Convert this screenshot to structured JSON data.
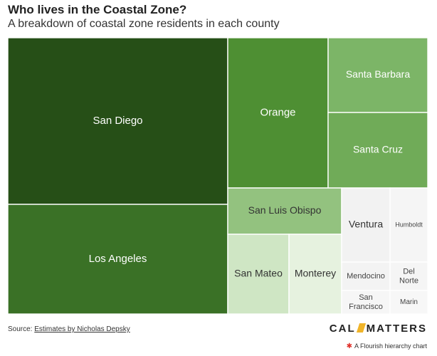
{
  "header": {
    "title": "Who lives in the Coastal Zone?",
    "subtitle": "A breakdown of coastal zone residents in each county"
  },
  "footer": {
    "source_prefix": "Source: ",
    "source_link": "Estimates by Nicholas Depsky",
    "logo_left": "CAL",
    "logo_right": "MATTERS",
    "flourish_label": "A Flourish hierarchy chart",
    "flourish_icon": "flourish-logo-icon"
  },
  "chart_data": {
    "type": "treemap",
    "title": "Who lives in the Coastal Zone?",
    "subtitle": "A breakdown of coastal zone residents in each county",
    "value_note": "relative share estimated from tile area",
    "items": [
      {
        "name": "San Diego",
        "value": 100
      },
      {
        "name": "Los Angeles",
        "value": 64
      },
      {
        "name": "Orange",
        "value": 44
      },
      {
        "name": "Santa Barbara",
        "value": 15
      },
      {
        "name": "Santa Cruz",
        "value": 15
      },
      {
        "name": "San Luis Obispo",
        "value": 11.5
      },
      {
        "name": "San Mateo",
        "value": 11.5
      },
      {
        "name": "Monterey",
        "value": 10
      },
      {
        "name": "Ventura",
        "value": 7
      },
      {
        "name": "Humboldt",
        "value": 6
      },
      {
        "name": "Mendocino",
        "value": 4.5
      },
      {
        "name": "Del Norte",
        "value": 3
      },
      {
        "name": "San Francisco",
        "value": 3
      },
      {
        "name": "Marin",
        "value": 2
      }
    ],
    "colors": {
      "San Diego": "#264f17",
      "Los Angeles": "#3a7126",
      "Orange": "#4e8f33",
      "Santa Barbara": "#7cb567",
      "Santa Cruz": "#70ab58",
      "San Luis Obispo": "#93c27f",
      "San Mateo": "#cfe6c4",
      "Monterey": "#e6f2df",
      "Ventura": "#f2f2f2",
      "Humboldt": "#f5f5f5",
      "Mendocino": "#f3f3f3",
      "Del Norte": "#f5f5f5",
      "San Francisco": "#f6f6f6",
      "Marin": "#f7f7f7"
    }
  }
}
